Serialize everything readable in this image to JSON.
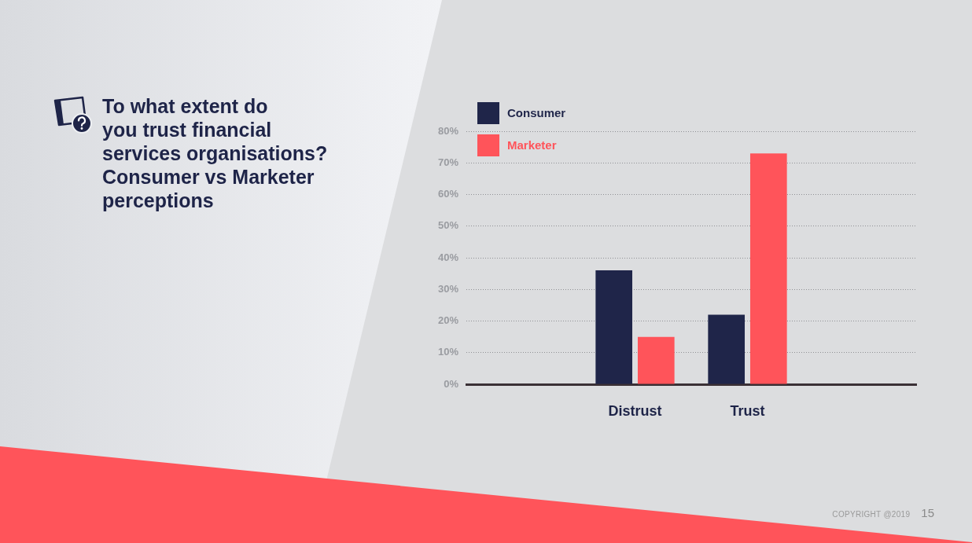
{
  "chart_data": {
    "type": "bar",
    "title": "To what extent do\nyou trust financial\nservices organisations?\nConsumer vs Marketer\nperceptions",
    "categories": [
      null,
      "Distrust",
      "Trust",
      null
    ],
    "series": [
      {
        "name": "Consumer",
        "color": "#1f2549",
        "values": [
          null,
          36,
          22,
          null
        ]
      },
      {
        "name": "Marketer",
        "color": "#ff545a",
        "values": [
          null,
          15,
          73,
          null
        ]
      }
    ],
    "ylim": [
      0,
      80
    ],
    "yticks": [
      {
        "value": 0,
        "label": "0%"
      },
      {
        "value": 10,
        "label": "10%"
      },
      {
        "value": 20,
        "label": "20%"
      },
      {
        "value": 30,
        "label": "30%"
      },
      {
        "value": 40,
        "label": "40%"
      },
      {
        "value": 50,
        "label": "50%"
      },
      {
        "value": 60,
        "label": "60%"
      },
      {
        "value": 70,
        "label": "70%"
      },
      {
        "value": 80,
        "label": "80%"
      }
    ],
    "grid": "y",
    "legend": "top left",
    "annotations": [
      "COPYRIGHT @2019",
      "15"
    ]
  }
}
